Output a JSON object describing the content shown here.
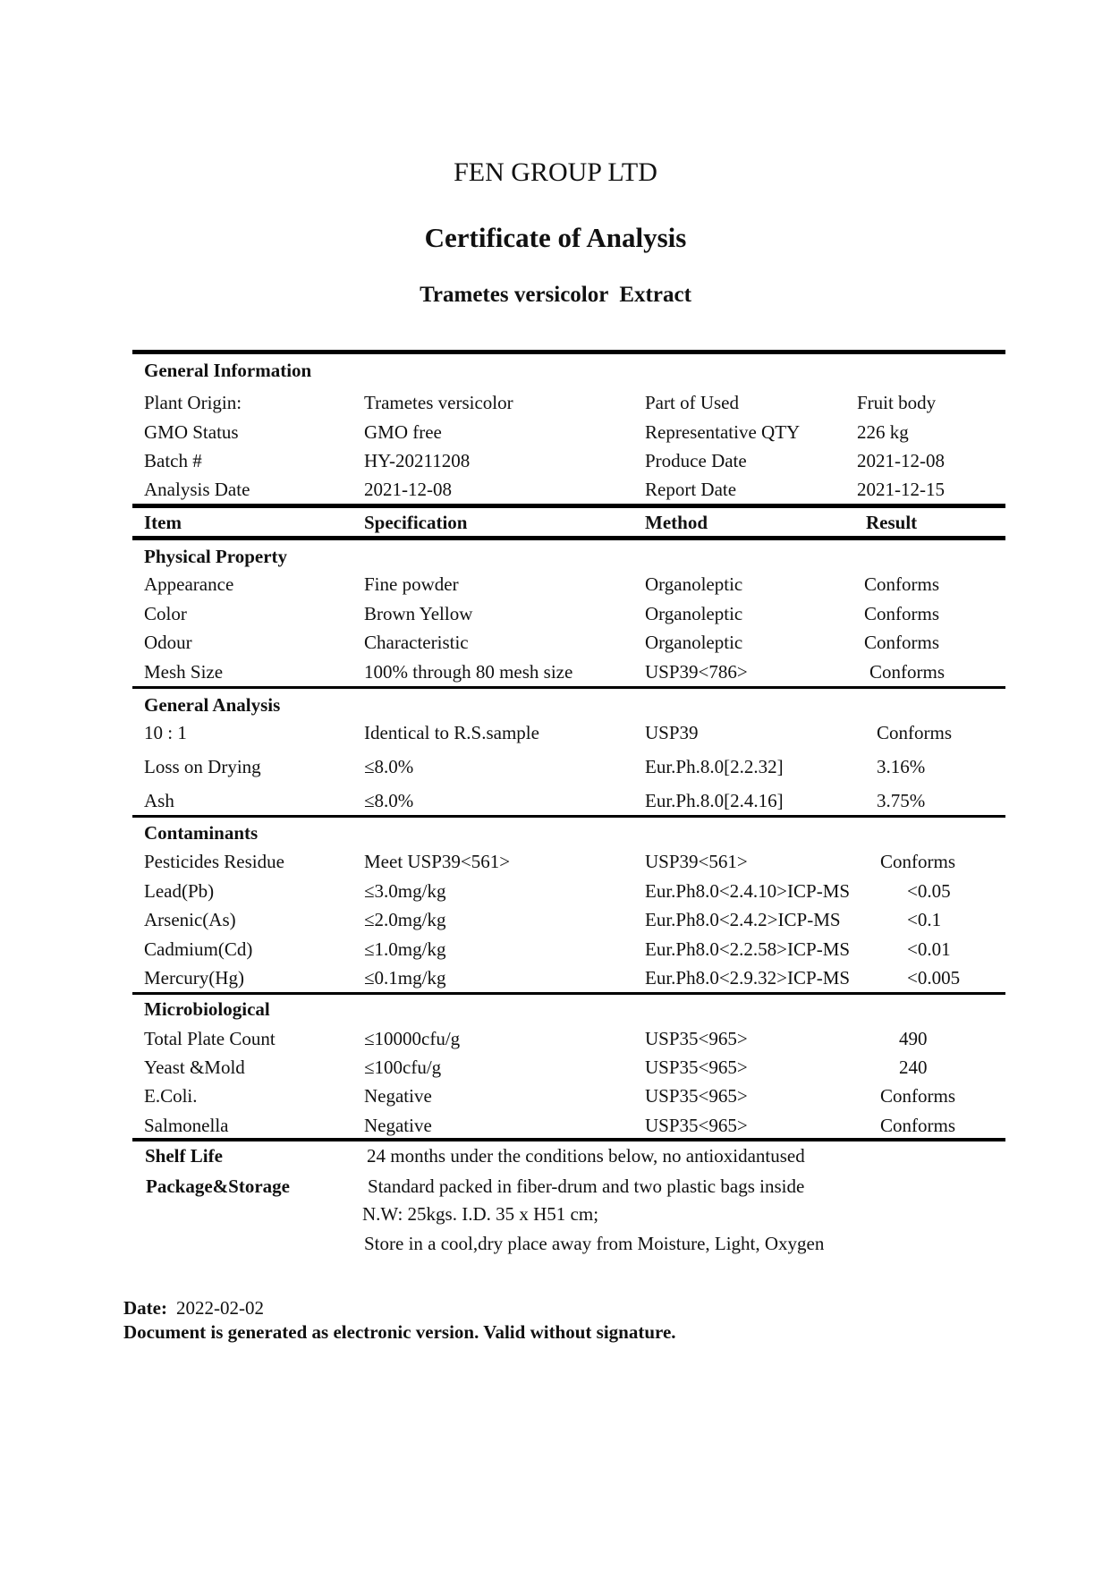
{
  "company": "FEN GROUP LTD",
  "title": "Certificate of Analysis",
  "product": "Trametes versicolor  Extract",
  "general_info": {
    "heading": "General Information",
    "rows": [
      [
        "Plant Origin:",
        "Trametes versicolor",
        "Part of Used",
        "Fruit body"
      ],
      [
        "GMO Status",
        "GMO free",
        "Representative QTY",
        "226 kg"
      ],
      [
        "Batch #",
        "HY-20211208",
        "Produce Date",
        "2021-12-08"
      ],
      [
        "Analysis Date",
        "2021-12-08",
        "Report Date",
        "2021-12-15"
      ]
    ]
  },
  "columns": [
    "Item",
    "Specification",
    "Method",
    "Result"
  ],
  "sections": [
    {
      "heading": "Physical Property",
      "rows": [
        [
          "Appearance",
          "Fine powder",
          "Organoleptic",
          "Conforms"
        ],
        [
          "Color",
          "Brown Yellow",
          "Organoleptic",
          "Conforms"
        ],
        [
          "Odour",
          "Characteristic",
          "Organoleptic",
          "Conforms"
        ],
        [
          "Mesh Size",
          "100% through 80 mesh size",
          "USP39<786>",
          "Conforms"
        ]
      ]
    },
    {
      "heading": "General Analysis",
      "rows": [
        [
          "10 : 1",
          "Identical to R.S.sample",
          "USP39",
          "Conforms"
        ],
        [
          "Loss on Drying",
          "≤8.0%",
          "Eur.Ph.8.0[2.2.32]",
          "3.16%"
        ],
        [
          "Ash",
          "≤8.0%",
          "Eur.Ph.8.0[2.4.16]",
          "3.75%"
        ]
      ]
    },
    {
      "heading": "Contaminants",
      "rows": [
        [
          "Pesticides Residue",
          "Meet USP39<561>",
          "USP39<561>",
          "Conforms"
        ],
        [
          "Lead(Pb)",
          "≤3.0mg/kg",
          "Eur.Ph8.0<2.4.10>ICP-MS",
          "<0.05"
        ],
        [
          "Arsenic(As)",
          "≤2.0mg/kg",
          "Eur.Ph8.0<2.4.2>ICP-MS",
          "<0.1"
        ],
        [
          "Cadmium(Cd)",
          "≤1.0mg/kg",
          "Eur.Ph8.0<2.2.58>ICP-MS",
          "<0.01"
        ],
        [
          "Mercury(Hg)",
          "≤0.1mg/kg",
          "Eur.Ph8.0<2.9.32>ICP-MS",
          "<0.005"
        ]
      ]
    },
    {
      "heading": "Microbiological",
      "rows": [
        [
          "Total Plate Count",
          "≤10000cfu/g",
          "USP35<965>",
          "490"
        ],
        [
          "Yeast &Mold",
          "≤100cfu/g",
          "USP35<965>",
          "240"
        ],
        [
          "E.Coli.",
          "Negative",
          "USP35<965>",
          "Conforms"
        ],
        [
          "Salmonella",
          "Negative",
          "USP35<965>",
          "Conforms"
        ]
      ]
    }
  ],
  "shelf_life": {
    "label": "Shelf Life",
    "value": "24 months under the conditions below, no antioxidantused"
  },
  "package": {
    "label": "Package&Storage",
    "lines": [
      "Standard packed in fiber-drum and two plastic bags inside",
      "N.W: 25kgs. I.D. 35 x H51 cm;",
      "Store in a cool,dry place away from Moisture, Light, Oxygen"
    ]
  },
  "footer": {
    "date_label": "Date:",
    "date": "2022-02-02",
    "note": "Document is generated as electronic version. Valid without signature."
  }
}
